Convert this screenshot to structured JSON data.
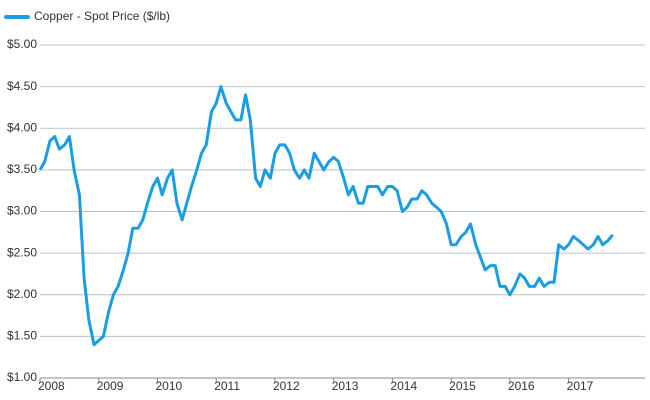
{
  "chart_data": {
    "type": "line",
    "series": [
      {
        "name": "Copper - Spot Price ($/lb)",
        "color": "#1b9de2",
        "x": [
          2008,
          2008.08,
          2008.17,
          2008.25,
          2008.33,
          2008.42,
          2008.5,
          2008.58,
          2008.67,
          2008.75,
          2008.83,
          2008.92,
          2009,
          2009.08,
          2009.17,
          2009.25,
          2009.33,
          2009.42,
          2009.5,
          2009.58,
          2009.67,
          2009.75,
          2009.83,
          2009.92,
          2010,
          2010.08,
          2010.17,
          2010.25,
          2010.33,
          2010.42,
          2010.5,
          2010.58,
          2010.67,
          2010.75,
          2010.83,
          2010.92,
          2011,
          2011.08,
          2011.17,
          2011.25,
          2011.33,
          2011.42,
          2011.5,
          2011.58,
          2011.67,
          2011.75,
          2011.83,
          2011.92,
          2012,
          2012.08,
          2012.17,
          2012.25,
          2012.33,
          2012.42,
          2012.5,
          2012.58,
          2012.67,
          2012.75,
          2012.83,
          2012.92,
          2013,
          2013.08,
          2013.17,
          2013.25,
          2013.33,
          2013.42,
          2013.5,
          2013.58,
          2013.67,
          2013.75,
          2013.83,
          2013.92,
          2014,
          2014.08,
          2014.17,
          2014.25,
          2014.33,
          2014.42,
          2014.5,
          2014.58,
          2014.67,
          2014.75,
          2014.83,
          2014.92,
          2015,
          2015.08,
          2015.17,
          2015.25,
          2015.33,
          2015.42,
          2015.5,
          2015.58,
          2015.67,
          2015.75,
          2015.83,
          2015.92,
          2016,
          2016.08,
          2016.17,
          2016.25,
          2016.33,
          2016.42,
          2016.5,
          2016.58,
          2016.67,
          2016.75,
          2016.83,
          2016.92,
          2017,
          2017.08,
          2017.17,
          2017.25,
          2017.33,
          2017.42,
          2017.5,
          2017.58,
          2017.67,
          2017.75
        ],
        "values": [
          3.5,
          3.6,
          3.85,
          3.9,
          3.75,
          3.8,
          3.9,
          3.5,
          3.2,
          2.2,
          1.7,
          1.4,
          1.45,
          1.5,
          1.8,
          2.0,
          2.1,
          2.3,
          2.5,
          2.8,
          2.8,
          2.9,
          3.1,
          3.3,
          3.4,
          3.2,
          3.4,
          3.5,
          3.1,
          2.9,
          3.1,
          3.3,
          3.5,
          3.7,
          3.8,
          4.2,
          4.3,
          4.5,
          4.3,
          4.2,
          4.1,
          4.1,
          4.4,
          4.1,
          3.4,
          3.3,
          3.5,
          3.4,
          3.7,
          3.8,
          3.8,
          3.7,
          3.5,
          3.4,
          3.5,
          3.4,
          3.7,
          3.6,
          3.5,
          3.6,
          3.65,
          3.6,
          3.4,
          3.2,
          3.3,
          3.1,
          3.1,
          3.3,
          3.3,
          3.3,
          3.2,
          3.3,
          3.3,
          3.25,
          3.0,
          3.05,
          3.15,
          3.15,
          3.25,
          3.2,
          3.1,
          3.05,
          3.0,
          2.85,
          2.6,
          2.6,
          2.7,
          2.75,
          2.85,
          2.6,
          2.45,
          2.3,
          2.35,
          2.35,
          2.1,
          2.1,
          2.0,
          2.1,
          2.25,
          2.2,
          2.1,
          2.1,
          2.2,
          2.1,
          2.15,
          2.15,
          2.6,
          2.55,
          2.6,
          2.7,
          2.65,
          2.6,
          2.55,
          2.6,
          2.7,
          2.6,
          2.65,
          2.72
        ]
      }
    ],
    "xlim": [
      2008,
      2018.3
    ],
    "xticks": [
      2008,
      2009,
      2010,
      2011,
      2012,
      2013,
      2014,
      2015,
      2016,
      2017
    ],
    "ylim": [
      1,
      5
    ],
    "yticks": [
      {
        "value": 1,
        "label": "$1.00"
      },
      {
        "value": 1.5,
        "label": "$1.50"
      },
      {
        "value": 2,
        "label": "$2.00"
      },
      {
        "value": 2.5,
        "label": "$2.50"
      },
      {
        "value": 3,
        "label": "$3.00"
      },
      {
        "value": 3.5,
        "label": "$3.50"
      },
      {
        "value": 4,
        "label": "$4.00"
      },
      {
        "value": 4.5,
        "label": "$4.50"
      },
      {
        "value": 5,
        "label": "$5.00"
      }
    ],
    "grid": true,
    "legend": "top-left"
  }
}
